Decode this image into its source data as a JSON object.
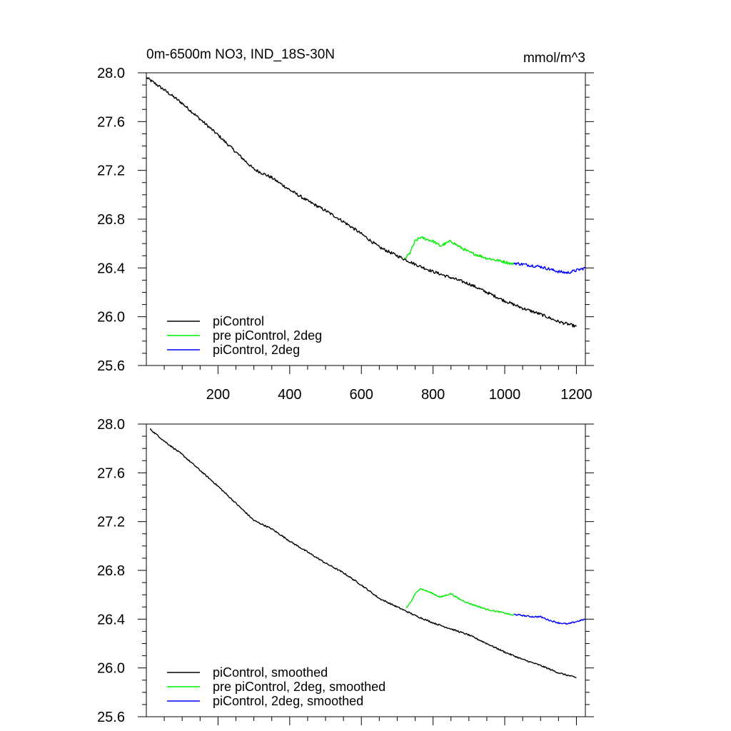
{
  "figure": {
    "title_left": "0m-6500m NO3, IND_18S-30N",
    "title_right": "mmol/m^3"
  },
  "chart_data": [
    {
      "type": "line",
      "title": "0m-6500m NO3, IND_18S-30N",
      "units": "mmol/m^3",
      "xlim": [
        0,
        1225
      ],
      "ylim": [
        25.6,
        28.0
      ],
      "yticks": [
        25.6,
        26.0,
        26.4,
        26.8,
        27.2,
        27.6,
        28.0
      ],
      "ytick_labels": [
        "25.6",
        "26.0",
        "26.4",
        "26.8",
        "27.2",
        "27.6",
        "28.0"
      ],
      "xticks": [
        200,
        400,
        600,
        800,
        1000,
        1200
      ],
      "xtick_labels": [
        "200",
        "400",
        "600",
        "800",
        "1000",
        "1200"
      ],
      "show_x_labels": true,
      "legend_position": "bottom-left",
      "series": [
        {
          "name": "piControl",
          "color": "#000000",
          "noise": 0.012,
          "x": [
            1,
            50,
            100,
            150,
            200,
            250,
            300,
            350,
            400,
            450,
            500,
            550,
            600,
            650,
            700,
            750,
            800,
            850,
            900,
            950,
            1000,
            1050,
            1100,
            1150,
            1200
          ],
          "y": [
            27.96,
            27.86,
            27.75,
            27.62,
            27.49,
            27.35,
            27.21,
            27.14,
            27.04,
            26.95,
            26.87,
            26.78,
            26.68,
            26.57,
            26.5,
            26.43,
            26.37,
            26.32,
            26.27,
            26.2,
            26.13,
            26.07,
            26.02,
            25.96,
            25.92
          ]
        },
        {
          "name": "pre piControl, 2deg",
          "color": "#00ee00",
          "noise": 0.012,
          "x": [
            720,
            735,
            750,
            765,
            800,
            820,
            850,
            870,
            900,
            950,
            1000,
            1025
          ],
          "y": [
            26.47,
            26.52,
            26.62,
            26.65,
            26.62,
            26.58,
            26.62,
            26.58,
            26.53,
            26.48,
            26.45,
            26.43
          ]
        },
        {
          "name": "piControl, 2deg",
          "color": "#0000ff",
          "noise": 0.012,
          "x": [
            1025,
            1050,
            1075,
            1100,
            1125,
            1150,
            1175,
            1200,
            1225
          ],
          "y": [
            26.44,
            26.43,
            26.42,
            26.41,
            26.39,
            26.37,
            26.36,
            26.38,
            26.4
          ]
        }
      ]
    },
    {
      "type": "line",
      "xlim": [
        0,
        1225
      ],
      "ylim": [
        25.6,
        28.0
      ],
      "yticks": [
        25.6,
        26.0,
        26.4,
        26.8,
        27.2,
        27.6,
        28.0
      ],
      "ytick_labels": [
        "25.6",
        "26.0",
        "26.4",
        "26.8",
        "27.2",
        "27.6",
        "28.0"
      ],
      "xticks": [
        200,
        400,
        600,
        800,
        1000,
        1200
      ],
      "xtick_labels": [],
      "show_x_labels": false,
      "legend_position": "bottom-left",
      "series": [
        {
          "name": "piControl, smoothed",
          "color": "#000000",
          "noise": 0.006,
          "x": [
            10,
            50,
            100,
            150,
            200,
            250,
            300,
            350,
            400,
            450,
            500,
            550,
            600,
            650,
            700,
            750,
            800,
            850,
            900,
            950,
            1000,
            1050,
            1100,
            1150,
            1200
          ],
          "y": [
            27.96,
            27.86,
            27.75,
            27.62,
            27.49,
            27.35,
            27.21,
            27.14,
            27.04,
            26.95,
            26.86,
            26.78,
            26.68,
            26.57,
            26.5,
            26.43,
            26.37,
            26.32,
            26.27,
            26.2,
            26.13,
            26.07,
            26.02,
            25.96,
            25.92
          ]
        },
        {
          "name": "pre piControl, 2deg, smoothed",
          "color": "#00ee00",
          "noise": 0.006,
          "x": [
            725,
            740,
            755,
            765,
            800,
            820,
            850,
            870,
            900,
            950,
            1000,
            1025
          ],
          "y": [
            26.49,
            26.55,
            26.63,
            26.65,
            26.61,
            26.58,
            26.61,
            26.57,
            26.53,
            26.48,
            26.45,
            26.43
          ]
        },
        {
          "name": "piControl, 2deg, smoothed",
          "color": "#0000ff",
          "noise": 0.006,
          "x": [
            1025,
            1050,
            1075,
            1100,
            1125,
            1150,
            1175,
            1200,
            1225
          ],
          "y": [
            26.44,
            26.43,
            26.42,
            26.42,
            26.39,
            26.37,
            26.36,
            26.38,
            26.4
          ]
        }
      ]
    }
  ]
}
